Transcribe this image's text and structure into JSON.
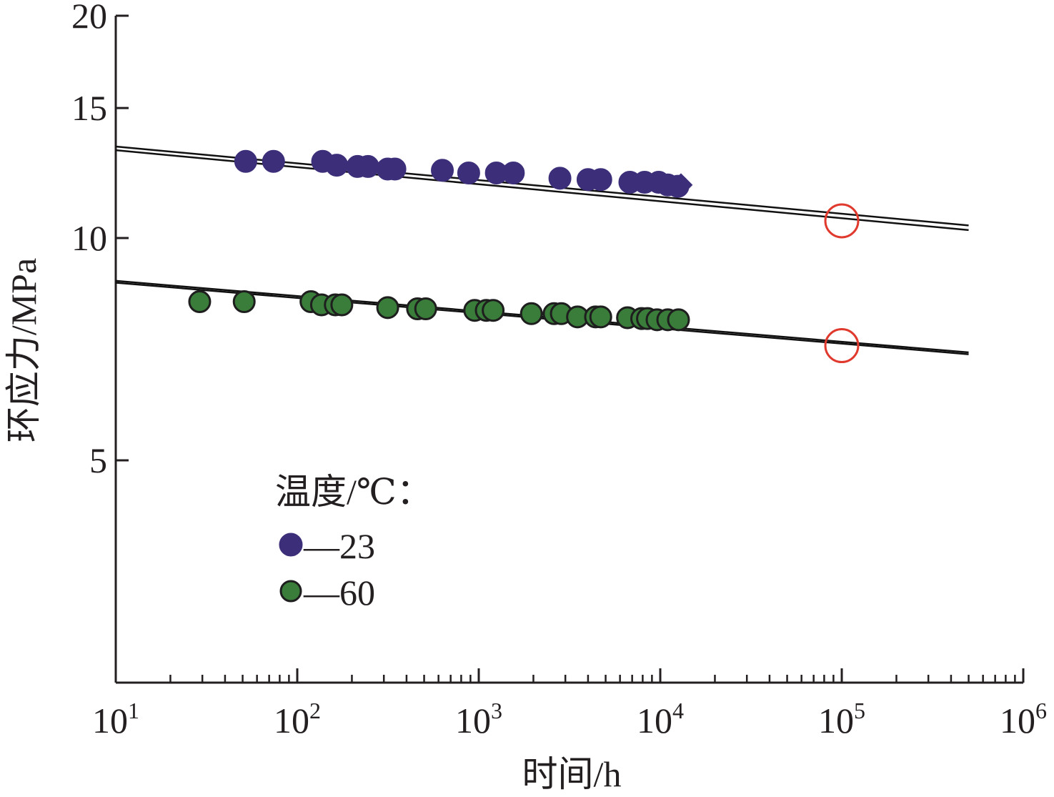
{
  "chart_data": {
    "type": "scatter",
    "xlabel": "时间/h",
    "ylabel": "环应力/MPa",
    "xscale": "log",
    "yscale": "log",
    "xlim": [
      10,
      1000000
    ],
    "ylim": [
      2.5,
      20
    ],
    "xticks": [
      {
        "value": 10,
        "base": "10",
        "exp": "1"
      },
      {
        "value": 100,
        "base": "10",
        "exp": "2"
      },
      {
        "value": 1000,
        "base": "10",
        "exp": "3"
      },
      {
        "value": 10000,
        "base": "10",
        "exp": "4"
      },
      {
        "value": 100000,
        "base": "10",
        "exp": "5"
      },
      {
        "value": 1000000,
        "base": "10",
        "exp": "6"
      }
    ],
    "yticks": [
      {
        "value": 20,
        "label": "20"
      },
      {
        "value": 15,
        "label": "15"
      },
      {
        "value": 10,
        "label": "10"
      },
      {
        "value": 5,
        "label": "5"
      }
    ],
    "legend": {
      "title": "温度/℃：",
      "position": "lower-left",
      "entries": [
        {
          "marker": "●",
          "label": "—23",
          "series": 0
        },
        {
          "marker": "●",
          "label": "—60",
          "series": 1
        }
      ]
    },
    "series": [
      {
        "name": "23",
        "color": "#3d2e7a",
        "stroke": "#3d2e7a",
        "points": [
          [
            52,
            12.7
          ],
          [
            74,
            12.7
          ],
          [
            138,
            12.7
          ],
          [
            165,
            12.55
          ],
          [
            215,
            12.5
          ],
          [
            245,
            12.5
          ],
          [
            315,
            12.4
          ],
          [
            345,
            12.4
          ],
          [
            630,
            12.35
          ],
          [
            880,
            12.25
          ],
          [
            1250,
            12.25
          ],
          [
            1550,
            12.25
          ],
          [
            2800,
            12.05
          ],
          [
            4000,
            12.0
          ],
          [
            4700,
            12.0
          ],
          [
            6800,
            11.9
          ],
          [
            8200,
            11.9
          ],
          [
            9800,
            11.9
          ],
          [
            11000,
            11.8
          ],
          [
            12500,
            11.75
          ]
        ],
        "runouts": [
          [
            13000,
            11.8
          ]
        ],
        "fit_lines": [
          {
            "x": [
              10,
              500000
            ],
            "y": [
              13.3,
              10.4
            ]
          },
          {
            "x": [
              10,
              500000
            ],
            "y": [
              13.15,
              10.25
            ]
          }
        ],
        "extrapolated": {
          "x": 100000,
          "y": 10.55
        }
      },
      {
        "name": "60",
        "color": "#3a7d3a",
        "stroke": "#1e1e1e",
        "points": [
          [
            29,
            8.2
          ],
          [
            51,
            8.2
          ],
          [
            119,
            8.2
          ],
          [
            136,
            8.12
          ],
          [
            162,
            8.12
          ],
          [
            176,
            8.12
          ],
          [
            315,
            8.05
          ],
          [
            460,
            8.02
          ],
          [
            510,
            8.02
          ],
          [
            950,
            7.98
          ],
          [
            1100,
            7.98
          ],
          [
            1200,
            7.98
          ],
          [
            1950,
            7.9
          ],
          [
            2600,
            7.9
          ],
          [
            2850,
            7.9
          ],
          [
            3500,
            7.82
          ],
          [
            4400,
            7.82
          ],
          [
            4700,
            7.82
          ],
          [
            6600,
            7.8
          ],
          [
            7900,
            7.78
          ],
          [
            8500,
            7.78
          ],
          [
            9600,
            7.75
          ],
          [
            11000,
            7.75
          ],
          [
            12600,
            7.75
          ]
        ],
        "fit_lines": [
          {
            "x": [
              10,
              500000
            ],
            "y": [
              8.75,
              7.0
            ]
          },
          {
            "x": [
              10,
              500000
            ],
            "y": [
              8.7,
              6.96
            ]
          }
        ],
        "extrapolated": {
          "x": 100000,
          "y": 7.15
        }
      }
    ]
  }
}
